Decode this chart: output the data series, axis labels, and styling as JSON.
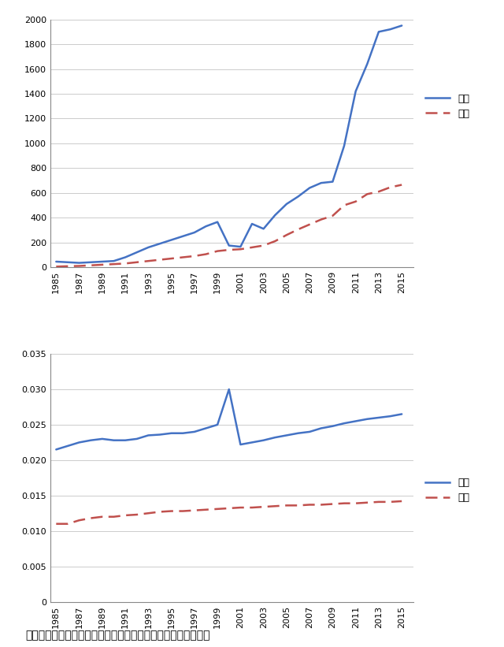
{
  "years": [
    1985,
    1986,
    1987,
    1988,
    1989,
    1990,
    1991,
    1992,
    1993,
    1994,
    1995,
    1996,
    1997,
    1998,
    1999,
    2000,
    2001,
    2002,
    2003,
    2004,
    2005,
    2006,
    2007,
    2008,
    2009,
    2010,
    2011,
    2012,
    2013,
    2014,
    2015
  ],
  "kunming_econ": [
    45,
    40,
    35,
    40,
    45,
    50,
    80,
    120,
    160,
    190,
    220,
    250,
    280,
    330,
    365,
    175,
    165,
    350,
    310,
    420,
    510,
    570,
    640,
    680,
    690,
    980,
    1420,
    1640,
    1900,
    1920,
    1950
  ],
  "china_econ": [
    5,
    8,
    10,
    15,
    20,
    25,
    30,
    40,
    50,
    60,
    70,
    80,
    90,
    105,
    130,
    140,
    145,
    160,
    175,
    210,
    260,
    305,
    345,
    385,
    415,
    500,
    530,
    590,
    610,
    645,
    665
  ],
  "kunming_pop": [
    0.0215,
    0.022,
    0.0225,
    0.0228,
    0.023,
    0.0228,
    0.0228,
    0.023,
    0.0235,
    0.0236,
    0.0238,
    0.0238,
    0.024,
    0.0245,
    0.025,
    0.03,
    0.0222,
    0.0225,
    0.0228,
    0.0232,
    0.0235,
    0.0238,
    0.024,
    0.0245,
    0.0248,
    0.0252,
    0.0255,
    0.0258,
    0.026,
    0.0262,
    0.0265
  ],
  "china_pop": [
    0.011,
    0.011,
    0.0115,
    0.0118,
    0.012,
    0.012,
    0.0122,
    0.0123,
    0.0125,
    0.0127,
    0.0128,
    0.0128,
    0.0129,
    0.013,
    0.0131,
    0.0132,
    0.0133,
    0.0133,
    0.0134,
    0.0135,
    0.0136,
    0.0136,
    0.0137,
    0.0137,
    0.0138,
    0.0139,
    0.0139,
    0.014,
    0.0141,
    0.0141,
    0.0142
  ],
  "econ_ylim": [
    0,
    2000
  ],
  "econ_yticks": [
    0,
    200,
    400,
    600,
    800,
    1000,
    1200,
    1400,
    1600,
    1800,
    2000
  ],
  "pop_ylim": [
    0,
    0.035
  ],
  "pop_yticks": [
    0,
    0.005,
    0.01,
    0.015,
    0.02,
    0.025,
    0.03,
    0.035
  ],
  "x_ticks": [
    1985,
    1987,
    1989,
    1991,
    1993,
    1995,
    1997,
    1999,
    2001,
    2003,
    2005,
    2007,
    2009,
    2011,
    2013,
    2015
  ],
  "kunming_color": "#4472C4",
  "china_color": "#C0504D",
  "legend_kunming": "昆明",
  "legend_china": "中国",
  "caption": "昆明市经济密度（上）和人口密度（下）与全国平均水平对比图",
  "background_color": "#ffffff",
  "plot_bg_color": "#ffffff"
}
